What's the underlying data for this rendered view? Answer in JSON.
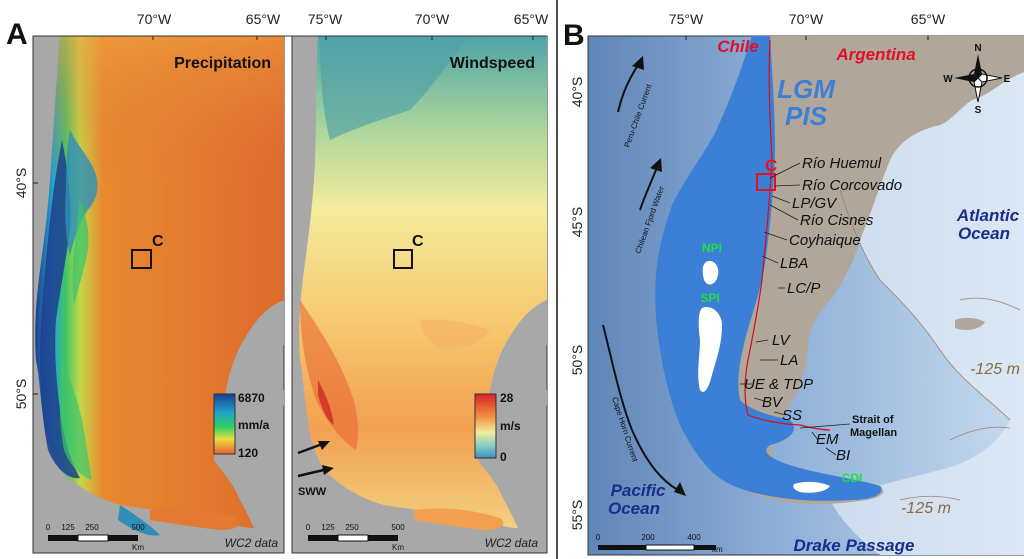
{
  "panel_a": {
    "letter": "A",
    "lon_ticks": [
      "70°W",
      "65°W"
    ],
    "lat_ticks": [
      "40°S",
      "50°S"
    ],
    "precip": {
      "title": "Precipitation",
      "box_label": "C",
      "legend_max": "6870",
      "legend_unit": "mm/a",
      "legend_min": "120",
      "source": "WC2 data",
      "scale_ticks": [
        "0",
        "125",
        "250",
        "500"
      ],
      "scale_unit": "Km"
    },
    "wind": {
      "lon_ticks": [
        "75°W",
        "70°W",
        "65°W"
      ],
      "title": "Windspeed",
      "box_label": "C",
      "legend_max": "28",
      "legend_unit": "m/s",
      "legend_min": "0",
      "arrow_label": "SWW",
      "source": "WC2 data",
      "scale_ticks": [
        "0",
        "125",
        "250",
        "500"
      ],
      "scale_unit": "Km"
    }
  },
  "panel_b": {
    "letter": "B",
    "lon_ticks": [
      "75°W",
      "70°W",
      "65°W"
    ],
    "lat_ticks": [
      "40°S",
      "45°S",
      "50°S",
      "55°S"
    ],
    "countries": {
      "chile": "Chile",
      "argentina": "Argentina"
    },
    "ice_sheet": [
      "LGM",
      "PIS"
    ],
    "box_label": "C",
    "fields": {
      "npi": "NPI",
      "spi": "SPI",
      "cdi": "CDI"
    },
    "sites": [
      "Río Huemul",
      "Río Corcovado",
      "LP/GV",
      "Río Cisnes",
      "Coyhaique",
      "LBA",
      "LC/P",
      "LV",
      "LA",
      "UE & TDP",
      "BV",
      "SS",
      "EM",
      "BI"
    ],
    "strait": [
      "Strait of",
      "Magellan"
    ],
    "oceans": {
      "atlantic": [
        "Atlantic",
        "Ocean"
      ],
      "pacific": [
        "Pacific",
        "Ocean"
      ],
      "drake": "Drake Passage"
    },
    "depth_labels": [
      "-125 m",
      "-125 m"
    ],
    "currents": {
      "peru_chile": "Peru-Chile Current",
      "fjord": "Chilean Fjord Water",
      "cape_horn": "Cape Horn Current"
    },
    "compass": {
      "n": "N",
      "s": "S",
      "e": "E",
      "w": "W"
    },
    "scale_ticks": [
      "0",
      "200",
      "400"
    ],
    "scale_unit": "km"
  },
  "colors": {
    "chile": "#e0102a",
    "ice": "#3b7fd6",
    "ocean_label": "#1a2c8c",
    "field": "#1fe040",
    "box": "#e8101c"
  }
}
